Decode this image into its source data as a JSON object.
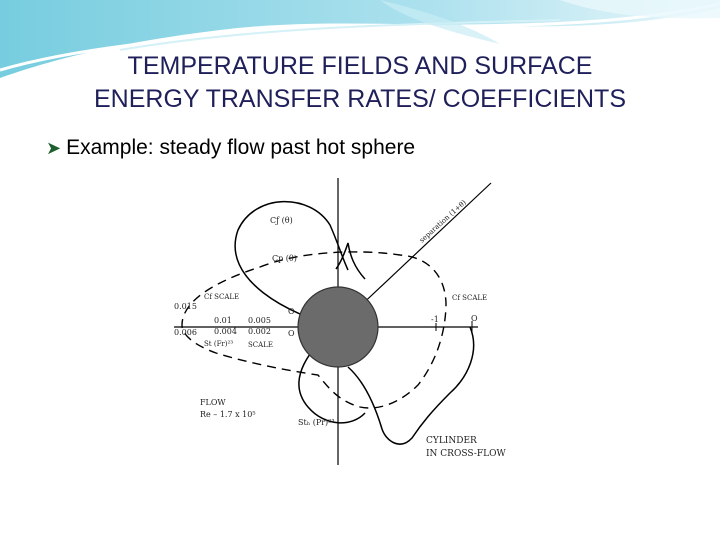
{
  "slide": {
    "title_line1": "TEMPERATURE FIELDS AND  SURFACE",
    "title_line2": "ENERGY TRANSFER RATES/ COEFFICIENTS",
    "bullet": "Example: steady flow past hot sphere",
    "colors": {
      "title": "#1f1f5a",
      "bullet_arrow": "#1f5f2f",
      "cylinder": "#6b6b6b",
      "deco": "#7ecfe0"
    }
  },
  "figure": {
    "cf_theta": "Cƒ (θ)",
    "cp_theta": "Cp (θ)",
    "separation": "separation (1+θ)",
    "cf_scale_left": "Cf SCALE",
    "cf_scale_right": "Cf SCALE",
    "val_0015": "0.015",
    "val_001": "0.01",
    "val_0005": "0.005",
    "val_0006": "0.006",
    "val_0004": "0.004",
    "val_0002": "0.002",
    "st_fr": "St (Fr)²³",
    "scale": "SCALE",
    "o_top": "O",
    "o_bottom": "O",
    "minus_one": "-1",
    "o_right": "O",
    "flow": "FLOW",
    "reynolds": "Re – 1.7 x 10⁵",
    "st_pr": "Stₕ (Pr)²³",
    "cylinder_line1": "CYLINDER",
    "cylinder_line2": "IN CROSS-FLOW"
  }
}
